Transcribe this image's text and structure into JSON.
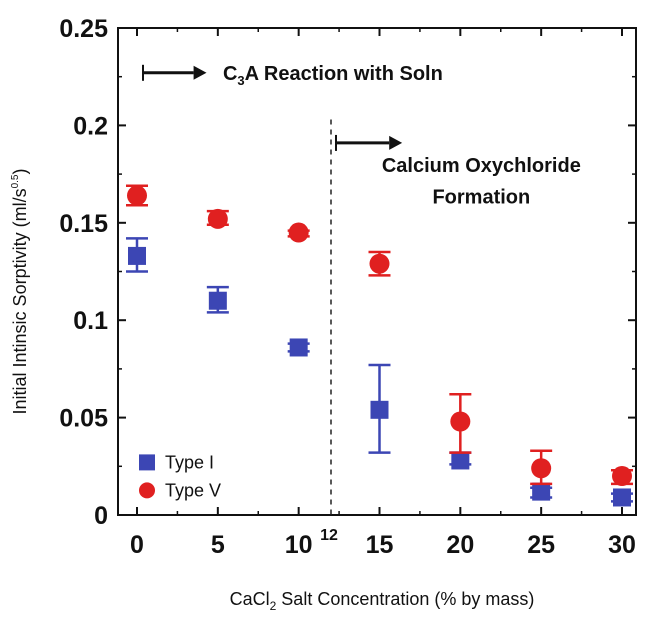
{
  "chart_data": {
    "type": "scatter",
    "xlabel_main": "CaCl",
    "xlabel_sub": "2",
    "xlabel_rest": " Salt Concentration (% by mass)",
    "ylabel_main": "Initial Intinsic Sorptivity (ml/s",
    "ylabel_sup": "0.5",
    "ylabel_end": ")",
    "xlim": [
      0,
      30
    ],
    "ylim": [
      0,
      0.25
    ],
    "xticks": [
      "0",
      "5",
      "10",
      "15",
      "20",
      "25",
      "30"
    ],
    "yticks": [
      "0",
      "0.05",
      "0.1",
      "0.15",
      "0.2",
      "0.25"
    ],
    "extra_xtick": "12",
    "divider_x": 12,
    "annotation_left_main": "C",
    "annotation_left_sub": "3",
    "annotation_left_rest": "A Reaction with Soln",
    "annotation_right_line1": "Calcium Oxychloride",
    "annotation_right_line2": "Formation",
    "series": [
      {
        "name": "Type I",
        "marker": "square",
        "color": "#3c46b4",
        "x": [
          0,
          5,
          10,
          15,
          20,
          25,
          30
        ],
        "y": [
          0.133,
          0.11,
          0.086,
          0.054,
          0.028,
          0.012,
          0.009
        ],
        "err_low": [
          0.008,
          0.006,
          0.002,
          0.022,
          0.002,
          0.003,
          0.002
        ],
        "err_high": [
          0.009,
          0.007,
          0.002,
          0.023,
          0.004,
          0.002,
          0.002
        ]
      },
      {
        "name": "Type V",
        "marker": "circle",
        "color": "#e02020",
        "x": [
          0,
          5,
          10,
          15,
          20,
          25,
          30
        ],
        "y": [
          0.164,
          0.152,
          0.145,
          0.129,
          0.048,
          0.024,
          0.02
        ],
        "err_low": [
          0.005,
          0.003,
          0.002,
          0.006,
          0.016,
          0.008,
          0.004
        ],
        "err_high": [
          0.005,
          0.004,
          0.001,
          0.006,
          0.014,
          0.009,
          0.003
        ]
      }
    ]
  }
}
